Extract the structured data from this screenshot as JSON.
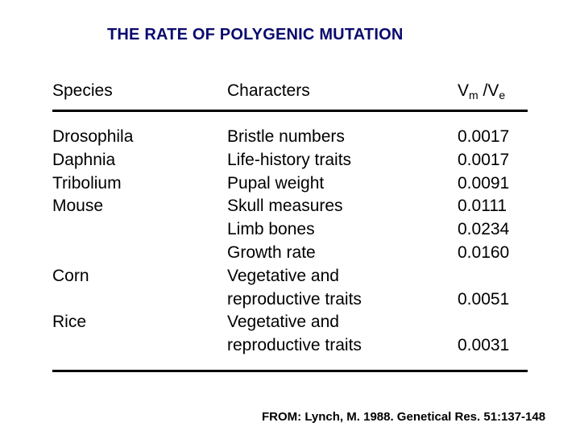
{
  "title": "THE RATE OF POLYGENIC MUTATION",
  "headers": {
    "species": "Species",
    "characters": "Characters",
    "ratio_main": "V",
    "ratio_sub1": "m",
    "ratio_mid": " /V",
    "ratio_sub2": "e"
  },
  "rows": {
    "species": [
      "Drosophila",
      "Daphnia",
      "Tribolium",
      "Mouse",
      "",
      "",
      "Corn",
      "",
      "Rice",
      ""
    ],
    "characters": [
      "Bristle numbers",
      "Life-history traits",
      "Pupal weight",
      "Skull measures",
      "Limb bones",
      "Growth rate",
      "Vegetative and",
      "reproductive traits",
      "Vegetative and",
      "reproductive traits"
    ],
    "values": [
      "0.0017",
      "0.0017",
      "0.0091",
      "0.0111",
      "0.0234",
      "0.0160",
      "",
      "0.0051",
      "",
      "0.0031"
    ]
  },
  "citation": "FROM: Lynch, M. 1988. Genetical Res. 51:137-148"
}
